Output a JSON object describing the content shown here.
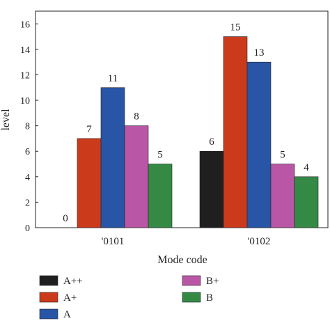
{
  "chart_data": {
    "type": "bar",
    "xlabel": "Mode code",
    "ylabel": "level",
    "ylim": [
      0,
      17
    ],
    "yticks": [
      0,
      2,
      4,
      6,
      8,
      10,
      12,
      14,
      16
    ],
    "categories": [
      "'0101",
      "'0102"
    ],
    "series": [
      {
        "name": "A++",
        "color": "#1f1f1f",
        "values": [
          0,
          6
        ]
      },
      {
        "name": "A+",
        "color": "#cc3a1c",
        "values": [
          7,
          15
        ]
      },
      {
        "name": "A",
        "color": "#2855a6",
        "values": [
          11,
          13
        ]
      },
      {
        "name": "B+",
        "color": "#b956a5",
        "values": [
          8,
          5
        ]
      },
      {
        "name": "B",
        "color": "#348a45",
        "values": [
          5,
          4
        ]
      }
    ],
    "legend_position": "bottom"
  }
}
